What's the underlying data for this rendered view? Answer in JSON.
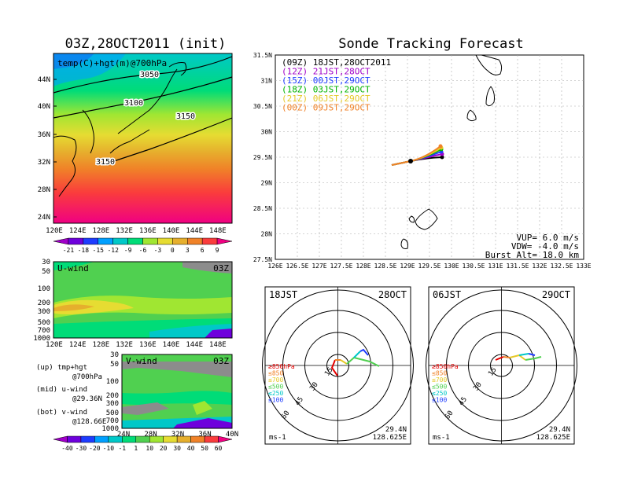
{
  "left_title": "03Z,28OCT2011 (init)",
  "right_title": "Sonde Tracking Forecast",
  "map_panel": {
    "label": "temp(C)+hgt(m)@700hPa",
    "lat_ticks": [
      "44N",
      "40N",
      "36N",
      "32N",
      "28N",
      "24N"
    ],
    "lon_ticks": [
      "120E",
      "124E",
      "128E",
      "132E",
      "136E",
      "140E",
      "144E",
      "148E"
    ],
    "contour_labels": [
      "3050",
      "3100",
      "3150",
      "3150"
    ]
  },
  "temp_colorbar": [
    "-21",
    "-18",
    "-15",
    "-12",
    "-9",
    "-6",
    "-3",
    "0",
    "3",
    "6",
    "9"
  ],
  "temp_colors": [
    "#a000c8",
    "#6e00dc",
    "#1e3cff",
    "#00a0ff",
    "#00c8c8",
    "#00dc78",
    "#a0e632",
    "#e6dc32",
    "#e6af2d",
    "#f08228",
    "#fa3c3c",
    "#f00082"
  ],
  "uwind_panel": {
    "label": "U-wind",
    "time": "03Z",
    "p_ticks": [
      "30",
      "50",
      "100",
      "200",
      "300",
      "500",
      "700",
      "1000"
    ],
    "lon_ticks": [
      "120E",
      "124E",
      "128E",
      "132E",
      "136E",
      "140E",
      "144E",
      "148E"
    ]
  },
  "vwind_panel": {
    "label": "V-wind",
    "time": "03Z",
    "p_ticks": [
      "30",
      "50",
      "100",
      "200",
      "300",
      "500",
      "700",
      "1000"
    ],
    "lat_ticks": [
      "24N",
      "28N",
      "32N",
      "36N",
      "40N"
    ]
  },
  "legend_notes": [
    "(up) tmp+hgt",
    "@700hPa",
    "(mid) u-wind",
    "@29.36N",
    "(bot) v-wind",
    "@128.66E"
  ],
  "wind_colorbar": [
    "-40",
    "-30",
    "-20",
    "-10",
    "-1",
    "1",
    "10",
    "20",
    "30",
    "40",
    "50",
    "60"
  ],
  "wind_colors": [
    "#a000c8",
    "#6e00dc",
    "#1e3cff",
    "#00a0ff",
    "#00c8c8",
    "#00dc78",
    "#50d050",
    "#a0e632",
    "#e6dc32",
    "#e6af2d",
    "#f08228",
    "#fa3c3c",
    "#f00082"
  ],
  "tracking": {
    "lat_ticks": [
      "31.5N",
      "31N",
      "30.5N",
      "30N",
      "29.5N",
      "29N",
      "28.5N",
      "28N",
      "27.5N"
    ],
    "lon_ticks": [
      "126E",
      "126.5E",
      "127E",
      "127.5E",
      "128E",
      "128.5E",
      "129E",
      "129.5E",
      "130E",
      "130.5E",
      "131E",
      "131.5E",
      "132E",
      "132.5E",
      "133E"
    ],
    "launch_legend": [
      {
        "text": "(09Z) 18JST,28OCT2011",
        "color": "#000000"
      },
      {
        "text": "(12Z) 21JST,28OCT",
        "color": "#a000c8"
      },
      {
        "text": "(15Z) 00JST,29OCT",
        "color": "#1e3cff"
      },
      {
        "text": "(18Z) 03JST,29OCT",
        "color": "#00b400"
      },
      {
        "text": "(21Z) 06JST,29OCT",
        "color": "#e6c828"
      },
      {
        "text": "(00Z) 09JST,29OCT",
        "color": "#f08228"
      }
    ],
    "params": [
      "VUP= 6.0 m/s",
      "VDW= -4.0 m/s",
      "Burst Alt= 18.0 km"
    ]
  },
  "hodographs": [
    {
      "left": "18JST",
      "right": "28OCT",
      "lat": "29.4N",
      "lon": "128.625E",
      "unit": "ms-1"
    },
    {
      "left": "06JST",
      "right": "29OCT",
      "lat": "29.4N",
      "lon": "128.625E",
      "unit": "ms-1"
    }
  ],
  "hodo_ring_labels": [
    "15",
    "30",
    "45",
    "60"
  ],
  "hodo_levels": [
    {
      "text": "≥850hPa",
      "color": "#e60000"
    },
    {
      "text": "≤850",
      "color": "#f08228"
    },
    {
      "text": "≤700",
      "color": "#e6c828"
    },
    {
      "text": "≤500",
      "color": "#50d050"
    },
    {
      "text": "≤250",
      "color": "#00c8c8"
    },
    {
      "text": "≤100",
      "color": "#1e3cff"
    }
  ]
}
